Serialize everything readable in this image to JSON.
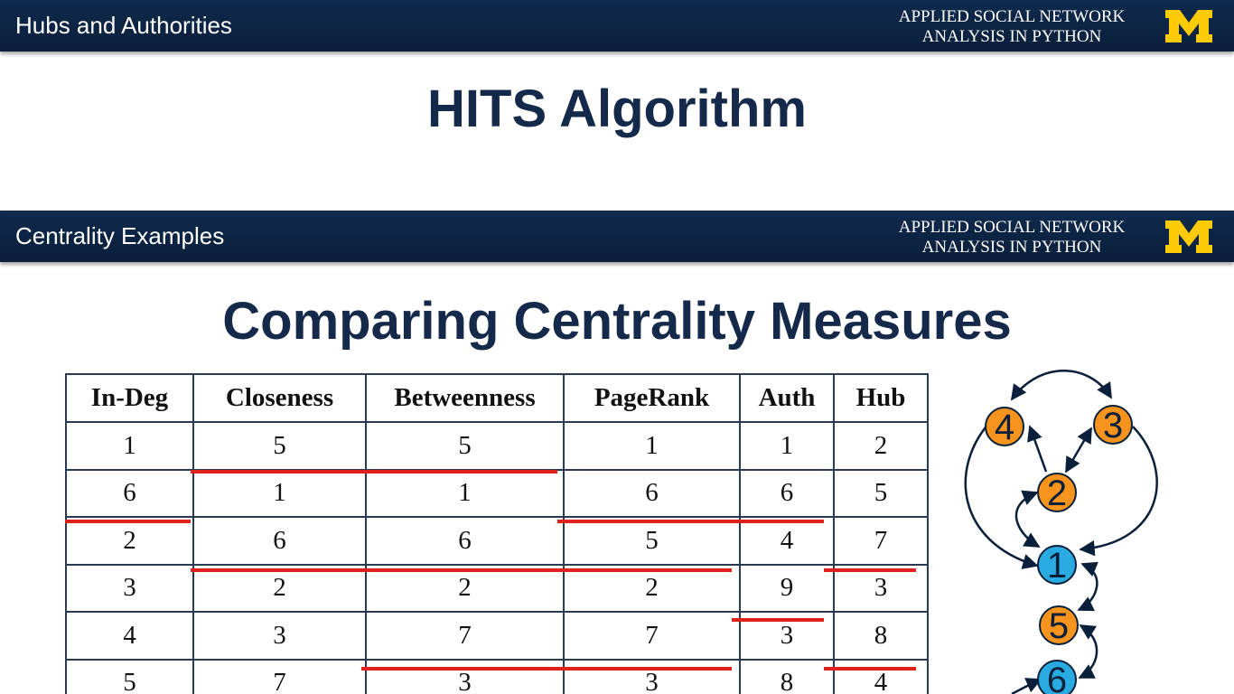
{
  "slide1": {
    "header": "Hubs and Authorities",
    "brand": [
      "APPLIED SOCIAL NETWORK",
      "ANALYSIS IN PYTHON"
    ],
    "title": "HITS Algorithm"
  },
  "slide2": {
    "header": "Centrality Examples",
    "brand": [
      "APPLIED SOCIAL NETWORK",
      "ANALYSIS IN PYTHON"
    ],
    "title": "Comparing Centrality Measures",
    "table": {
      "columns": [
        "In-Deg",
        "Closeness",
        "Betweenness",
        "PageRank",
        "Auth",
        "Hub"
      ],
      "rows": [
        [
          1,
          5,
          5,
          1,
          1,
          2
        ],
        [
          6,
          1,
          1,
          6,
          6,
          5
        ],
        [
          2,
          6,
          6,
          5,
          4,
          7
        ],
        [
          3,
          2,
          2,
          2,
          9,
          3
        ],
        [
          4,
          3,
          7,
          7,
          3,
          8
        ],
        [
          5,
          7,
          3,
          3,
          8,
          4
        ]
      ]
    },
    "graph": {
      "nodes": [
        4,
        3,
        2,
        1,
        5,
        6
      ]
    }
  }
}
